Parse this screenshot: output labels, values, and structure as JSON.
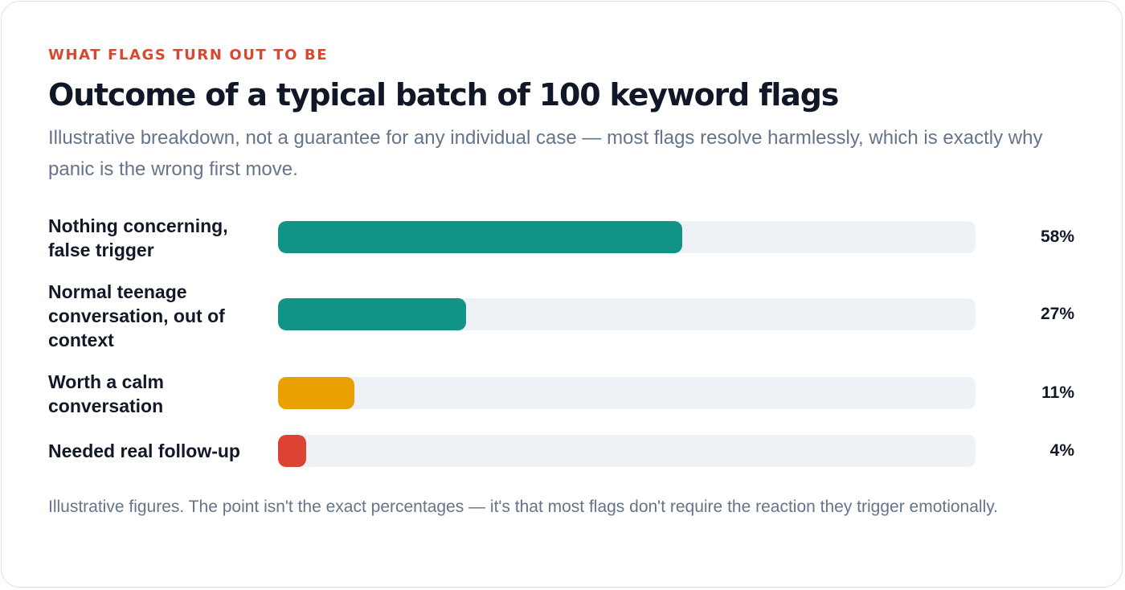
{
  "header": {
    "eyebrow": "WHAT FLAGS TURN OUT TO BE",
    "title": "Outcome of a typical batch of 100 keyword flags",
    "subtitle": "Illustrative breakdown, not a guarantee for any individual case — most flags resolve harmlessly, which is exactly why panic is the wrong first move."
  },
  "chart_data": {
    "type": "bar",
    "orientation": "horizontal",
    "title": "Outcome of a typical batch of 100 keyword flags",
    "xlim": [
      0,
      100
    ],
    "grid": false,
    "categories": [
      "Nothing concerning, false trigger",
      "Normal teenage conversation, out of context",
      "Worth a calm conversation",
      "Needed real follow-up"
    ],
    "values": [
      58,
      27,
      11,
      4
    ],
    "value_labels": [
      "58%",
      "27%",
      "11%",
      "4%"
    ],
    "colors": [
      "#119485",
      "#119485",
      "#e8a100",
      "#dd4334"
    ],
    "track_color": "#eef1f5"
  },
  "footnote": "Illustrative figures. The point isn't the exact percentages — it's that most flags don't require the reaction they trigger emotionally."
}
